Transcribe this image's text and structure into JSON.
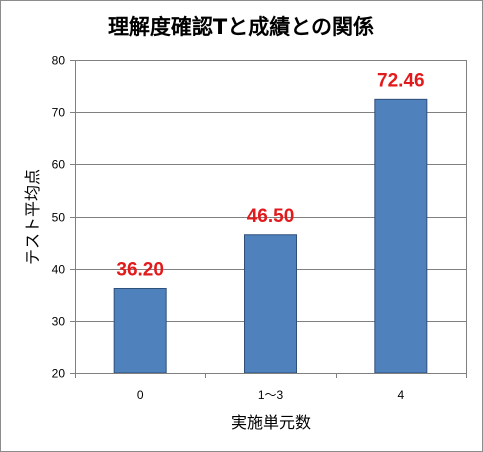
{
  "chart_data": {
    "type": "bar",
    "title": "理解度確認Tと成績との関係",
    "xlabel": "実施単元数",
    "ylabel": "テスト平均点",
    "categories": [
      "0",
      "1～3",
      "4"
    ],
    "values": [
      36.2,
      46.5,
      72.46
    ],
    "data_labels": [
      "36.20",
      "46.50",
      "72.46"
    ],
    "ylim": [
      20,
      80
    ],
    "yticks": [
      "20",
      "30",
      "40",
      "50",
      "60",
      "70",
      "80"
    ],
    "grid": true,
    "legend": "none",
    "colors": {
      "bar_fill": "#4f81bd",
      "bar_stroke": "#2f4f7a",
      "data_label": "#e31a1c",
      "grid": "#808080",
      "axis": "#808080"
    }
  }
}
